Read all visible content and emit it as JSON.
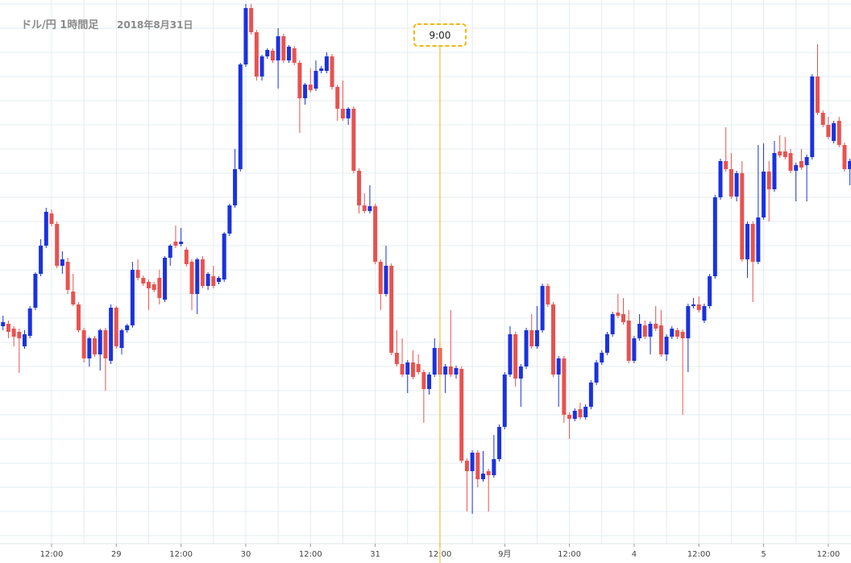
{
  "chart_data": {
    "type": "candlestick",
    "title": "ドル/円 1時間足",
    "subtitle": "2018年8月31日",
    "up_color": "#1a32e0",
    "down_color": "#e8524f",
    "grid": true,
    "ylim": [
      110.65,
      112.0
    ],
    "yticks": [
      111.99,
      111.93,
      111.87,
      111.81,
      111.75,
      111.69,
      111.63,
      111.57,
      111.51,
      111.45,
      111.39,
      111.33,
      111.27,
      111.21,
      111.15,
      111.09,
      111.03,
      110.97,
      110.91,
      110.85,
      110.79,
      110.73,
      110.67
    ],
    "xlim": [
      -0.56,
      157.2
    ],
    "xticks": [
      {
        "value": 9,
        "label": "12:00"
      },
      {
        "value": 21,
        "label": "29"
      },
      {
        "value": 33,
        "label": "12:00"
      },
      {
        "value": 45,
        "label": "30"
      },
      {
        "value": 57,
        "label": "12:00"
      },
      {
        "value": 69,
        "label": "31"
      },
      {
        "value": 81,
        "label": "12:00"
      },
      {
        "value": 93,
        "label": "9月"
      },
      {
        "value": 105,
        "label": "12:00"
      },
      {
        "value": 117,
        "label": "4"
      },
      {
        "value": 129,
        "label": "12:00"
      },
      {
        "value": 141,
        "label": "5"
      },
      {
        "value": 153,
        "label": "12:00"
      }
    ],
    "crosshair": {
      "x": 81,
      "label": "9:00",
      "color": "#f5b50f"
    },
    "open": [
      111.19,
      111.196,
      111.184,
      111.176,
      111.14,
      111.166,
      111.236,
      111.32,
      111.39,
      111.47,
      111.444,
      111.34,
      111.35,
      111.276,
      111.244,
      111.18,
      111.11,
      111.16,
      111.12,
      111.18,
      111.104,
      111.236,
      111.136,
      111.18,
      111.192,
      111.33,
      111.31,
      111.3,
      111.294,
      111.31,
      111.256,
      111.36,
      111.4,
      111.394,
      111.38,
      111.35,
      111.27,
      111.356,
      111.29,
      111.314,
      111.3,
      111.306,
      111.42,
      111.49,
      111.58,
      111.84,
      111.98,
      111.92,
      111.81,
      111.86,
      111.874,
      111.85,
      111.91,
      111.85,
      111.88,
      111.844,
      111.756,
      111.79,
      111.78,
      111.824,
      111.824,
      111.86,
      111.784,
      111.73,
      111.706,
      111.73,
      111.576,
      111.49,
      111.476,
      111.488,
      111.35,
      111.27,
      111.34,
      111.124,
      111.096,
      111.07,
      111.1,
      111.096,
      111.076,
      111.034,
      111.07,
      111.136,
      111.07,
      111.09,
      111.07,
      111.084,
      110.856,
      110.83,
      110.876,
      110.81,
      110.83,
      110.82,
      110.86,
      110.94,
      111.07,
      111.17,
      111.06,
      111.09,
      111.18,
      111.14,
      111.18,
      111.29,
      111.244,
      111.07,
      111.11,
      110.97,
      110.96,
      110.984,
      110.964,
      110.99,
      111.05,
      111.1,
      111.124,
      111.17,
      111.224,
      111.22,
      111.204,
      111.104,
      111.16,
      111.192,
      111.164,
      111.196,
      111.192,
      111.12,
      111.164,
      111.18,
      111.176,
      111.16,
      111.24,
      111.244,
      111.204,
      111.24,
      111.314,
      111.51,
      111.6,
      111.58,
      111.512,
      111.57,
      111.356,
      111.444,
      111.35,
      111.46,
      111.574,
      111.53,
      111.624,
      111.624,
      111.62,
      111.576,
      111.6,
      111.59,
      111.61,
      111.81,
      111.72,
      111.69,
      111.65,
      111.7,
      111.64,
      111.58
    ],
    "high": [
      111.216,
      111.204,
      111.19,
      111.184,
      111.18,
      111.24,
      111.324,
      111.406,
      111.484,
      111.48,
      111.45,
      111.376,
      111.36,
      111.32,
      111.25,
      111.186,
      111.164,
      111.166,
      111.184,
      111.186,
      111.244,
      111.24,
      111.184,
      111.196,
      111.35,
      111.356,
      111.316,
      111.306,
      111.3,
      111.33,
      111.364,
      111.394,
      111.44,
      111.434,
      111.386,
      111.356,
      111.36,
      111.364,
      111.324,
      111.34,
      111.314,
      111.424,
      111.494,
      111.63,
      111.844,
      111.99,
      111.99,
      111.926,
      111.864,
      111.88,
      111.88,
      111.93,
      111.916,
      111.888,
      111.886,
      111.85,
      111.794,
      111.83,
      111.85,
      111.836,
      111.87,
      111.866,
      111.79,
      111.8,
      111.734,
      111.736,
      111.582,
      111.52,
      111.54,
      111.494,
      111.356,
      111.39,
      111.346,
      111.18,
      111.16,
      111.106,
      111.13,
      111.12,
      111.082,
      111.076,
      111.16,
      111.15,
      111.096,
      111.23,
      111.092,
      111.09,
      110.862,
      110.882,
      110.882,
      110.88,
      110.836,
      110.92,
      110.946,
      111.076,
      111.19,
      111.176,
      111.096,
      111.186,
      111.22,
      111.24,
      111.296,
      111.296,
      111.25,
      111.116,
      111.116,
      110.976,
      110.986,
      111.0,
      110.996,
      111.056,
      111.106,
      111.13,
      111.176,
      111.226,
      111.27,
      111.26,
      111.23,
      111.166,
      111.22,
      111.204,
      111.202,
      111.24,
      111.23,
      111.17,
      111.19,
      111.186,
      111.182,
      111.246,
      111.26,
      111.264,
      111.246,
      111.32,
      111.516,
      111.606,
      111.684,
      111.62,
      111.576,
      111.6,
      111.45,
      111.45,
      111.64,
      111.644,
      111.6,
      111.65,
      111.664,
      111.66,
      111.63,
      111.596,
      111.63,
      111.616,
      111.816,
      111.89,
      111.726,
      111.71,
      111.7,
      111.71,
      111.646,
      111.606
    ],
    "low": [
      111.18,
      111.16,
      111.14,
      111.074,
      111.134,
      111.16,
      111.23,
      111.314,
      111.384,
      111.438,
      111.334,
      111.32,
      111.27,
      111.24,
      111.174,
      111.1,
      111.09,
      111.114,
      111.08,
      111.03,
      111.096,
      111.134,
      111.12,
      111.174,
      111.186,
      111.304,
      111.29,
      111.23,
      111.274,
      111.244,
      111.25,
      111.34,
      111.384,
      111.388,
      111.338,
      111.23,
      111.22,
      111.284,
      111.28,
      111.284,
      111.294,
      111.3,
      111.414,
      111.484,
      111.574,
      111.834,
      111.914,
      111.8,
      111.8,
      111.854,
      111.844,
      111.78,
      111.844,
      111.844,
      111.838,
      111.67,
      111.74,
      111.77,
      111.774,
      111.818,
      111.818,
      111.778,
      111.7,
      111.7,
      111.69,
      111.57,
      111.47,
      111.47,
      111.47,
      111.344,
      111.23,
      111.264,
      111.118,
      111.09,
      111.064,
      111.024,
      111.058,
      111.07,
      110.95,
      111.02,
      111.064,
      111.064,
      111.024,
      111.064,
      111.06,
      110.85,
      110.73,
      110.724,
      110.79,
      110.804,
      110.73,
      110.814,
      110.854,
      110.934,
      111.064,
      111.04,
      110.99,
      111.084,
      111.134,
      111.134,
      111.174,
      111.238,
      111.064,
      110.99,
      110.95,
      110.91,
      110.954,
      110.958,
      110.958,
      110.984,
      111.044,
      111.094,
      111.118,
      111.164,
      111.21,
      111.194,
      111.098,
      111.098,
      111.154,
      111.158,
      111.12,
      111.178,
      111.114,
      111.104,
      111.158,
      111.158,
      110.97,
      111.076,
      111.234,
      111.224,
      111.198,
      111.234,
      111.308,
      111.504,
      111.574,
      111.506,
      111.5,
      111.35,
      111.31,
      111.25,
      111.344,
      111.454,
      111.45,
      111.524,
      111.608,
      111.604,
      111.57,
      111.5,
      111.578,
      111.5,
      111.604,
      111.714,
      111.684,
      111.654,
      111.644,
      111.634,
      111.574,
      111.54
    ],
    "close": [
      111.2,
      111.176,
      111.164,
      111.16,
      111.17,
      111.234,
      111.32,
      111.39,
      111.474,
      111.444,
      111.34,
      111.356,
      111.28,
      111.244,
      111.18,
      111.11,
      111.16,
      111.12,
      111.18,
      111.11,
      111.236,
      111.14,
      111.18,
      111.192,
      111.33,
      111.31,
      111.296,
      111.284,
      111.28,
      111.26,
      111.36,
      111.39,
      111.39,
      111.4,
      111.344,
      111.27,
      111.356,
      111.29,
      111.32,
      111.29,
      111.31,
      111.42,
      111.49,
      111.58,
      111.84,
      111.98,
      111.92,
      111.81,
      111.86,
      111.876,
      111.85,
      111.91,
      111.85,
      111.884,
      111.844,
      111.756,
      111.79,
      111.776,
      111.824,
      111.83,
      111.86,
      111.784,
      111.73,
      111.706,
      111.73,
      111.576,
      111.49,
      111.476,
      111.488,
      111.35,
      111.27,
      111.34,
      111.124,
      111.096,
      111.07,
      111.1,
      111.064,
      111.076,
      111.034,
      111.07,
      111.136,
      111.07,
      111.09,
      111.07,
      111.086,
      110.856,
      110.83,
      110.876,
      110.81,
      110.824,
      110.82,
      110.86,
      110.94,
      111.07,
      111.17,
      111.06,
      111.09,
      111.18,
      111.14,
      111.18,
      111.29,
      111.244,
      111.07,
      111.11,
      110.97,
      110.96,
      110.98,
      110.964,
      110.99,
      111.05,
      111.1,
      111.124,
      111.17,
      111.22,
      111.216,
      111.2,
      111.104,
      111.16,
      111.196,
      111.164,
      111.196,
      111.184,
      111.12,
      111.164,
      111.184,
      111.164,
      111.16,
      111.24,
      111.244,
      111.23,
      111.24,
      111.314,
      111.51,
      111.6,
      111.58,
      111.512,
      111.57,
      111.356,
      111.444,
      111.35,
      111.46,
      111.574,
      111.53,
      111.62,
      111.614,
      111.61,
      111.576,
      111.59,
      111.584,
      111.61,
      111.81,
      111.72,
      111.69,
      111.66,
      111.694,
      111.64,
      111.58,
      111.6
    ]
  }
}
